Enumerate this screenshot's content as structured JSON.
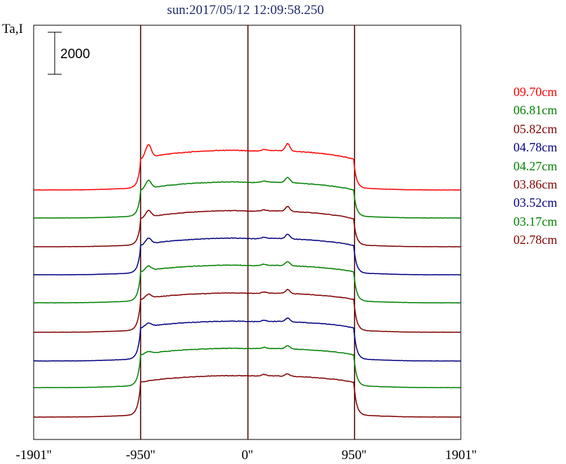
{
  "chart_data": {
    "type": "line",
    "title": "sun:2017/05/12 12:09:58.250",
    "ylabel": "Ta,I",
    "scale_bar_label": "2000",
    "scale_bar_value": 2000,
    "xlim": [
      -1901,
      1901
    ],
    "x_ticks": [
      {
        "value": -1901,
        "label": "-1901''"
      },
      {
        "value": -950,
        "label": "-950''"
      },
      {
        "value": 0,
        "label": "0''"
      },
      {
        "value": 950,
        "label": "950''"
      },
      {
        "value": 1901,
        "label": "1901''"
      }
    ],
    "vertical_lines": [
      -950,
      0,
      950
    ],
    "limb_x": 950,
    "series": [
      {
        "name": "09.70cm",
        "color": "#ff0000",
        "baseline": 271,
        "height": 3800,
        "limb_peak": 0.32,
        "edge": 0.62,
        "dip": 0.3
      },
      {
        "name": "06.81cm",
        "color": "#008000",
        "baseline": 311,
        "height": 3450,
        "limb_peak": 0.22,
        "edge": 0.62,
        "dip": 0.25
      },
      {
        "name": "05.82cm",
        "color": "#800000",
        "baseline": 352,
        "height": 3450,
        "limb_peak": 0.18,
        "edge": 0.62,
        "dip": 0.24
      },
      {
        "name": "04.78cm",
        "color": "#000080",
        "baseline": 392,
        "height": 3500,
        "limb_peak": 0.16,
        "edge": 0.66,
        "dip": 0.22
      },
      {
        "name": "04.27cm",
        "color": "#008000",
        "baseline": 432,
        "height": 3600,
        "limb_peak": 0.12,
        "edge": 0.7,
        "dip": 0.2
      },
      {
        "name": "03.86cm",
        "color": "#800000",
        "baseline": 474,
        "height": 3750,
        "limb_peak": 0.1,
        "edge": 0.72,
        "dip": 0.18
      },
      {
        "name": "03.52cm",
        "color": "#000080",
        "baseline": 515,
        "height": 3800,
        "limb_peak": 0.08,
        "edge": 0.72,
        "dip": 0.15
      },
      {
        "name": "03.17cm",
        "color": "#008000",
        "baseline": 553,
        "height": 3750,
        "limb_peak": 0.05,
        "edge": 0.72,
        "dip": 0.12
      },
      {
        "name": "02.78cm",
        "color": "#800000",
        "baseline": 595,
        "height": 3950,
        "limb_peak": 0.0,
        "edge": 0.73,
        "dip": 0.1
      }
    ]
  }
}
